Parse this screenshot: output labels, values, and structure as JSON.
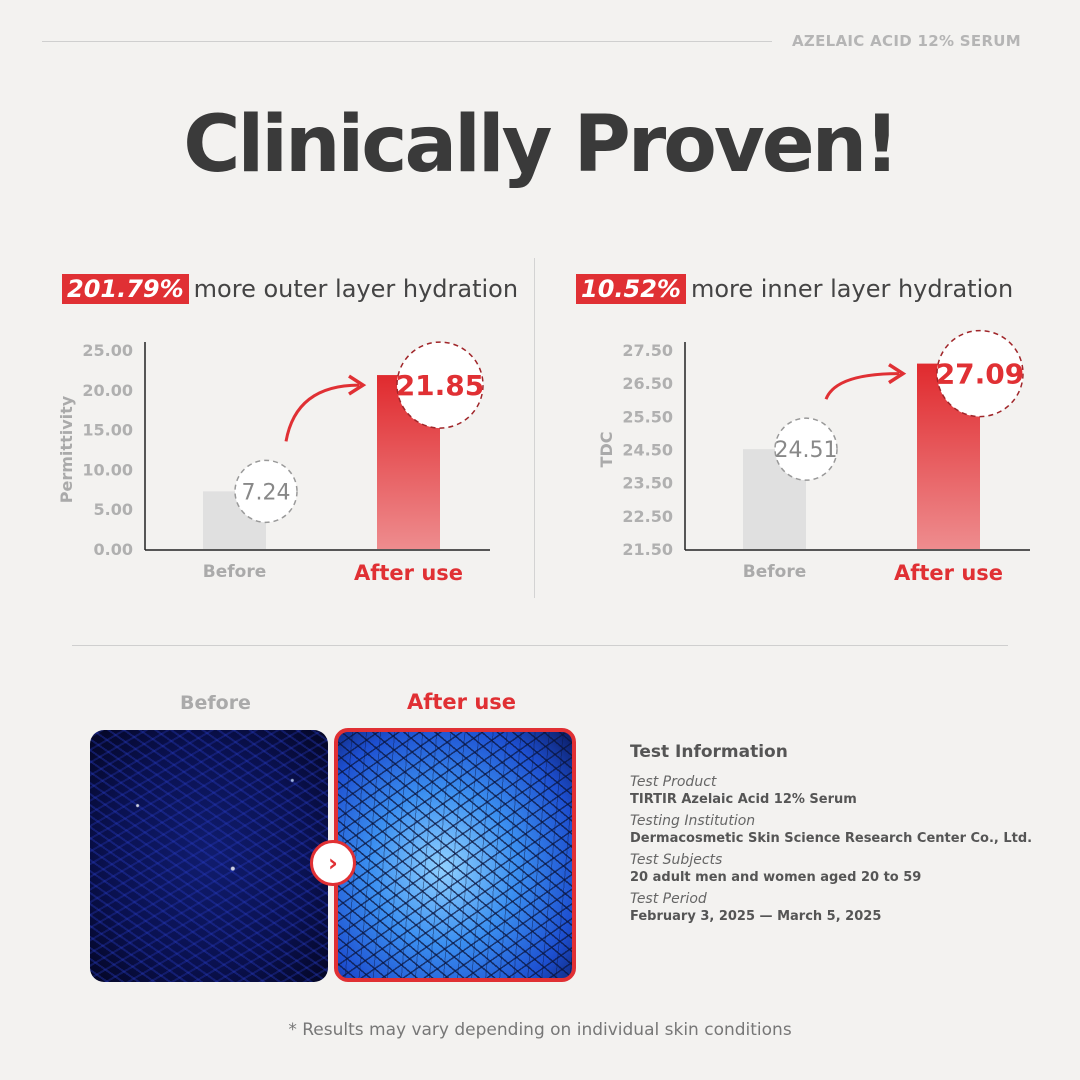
{
  "brand": "AZELAIC ACID 12% SERUM",
  "title": "Clinically Proven!",
  "chart_data": [
    {
      "type": "bar",
      "badge": "201.79%",
      "headline": "more outer layer hydration",
      "ylabel": "Permittivity",
      "categories": [
        "Before",
        "After use"
      ],
      "values": [
        7.24,
        21.85
      ],
      "value_labels": [
        "7.24",
        "21.85"
      ],
      "ylim": [
        0,
        25
      ],
      "yticks": [
        "25.00",
        "20.00",
        "15.00",
        "10.00",
        "5.00",
        "0.00"
      ],
      "colors": [
        "#e0e0e0",
        "#e03034"
      ]
    },
    {
      "type": "bar",
      "badge": "10.52%",
      "headline": "more inner layer hydration",
      "ylabel": "TDC",
      "categories": [
        "Before",
        "After use"
      ],
      "values": [
        24.51,
        27.09
      ],
      "value_labels": [
        "24.51",
        "27.09"
      ],
      "ylim": [
        21.5,
        27.5
      ],
      "yticks": [
        "27.50",
        "26.50",
        "25.50",
        "24.50",
        "23.50",
        "22.50",
        "21.50"
      ],
      "colors": [
        "#e0e0e0",
        "#e03034"
      ]
    }
  ],
  "images": {
    "before_label": "Before",
    "after_label": "After use"
  },
  "info": {
    "title": "Test Information",
    "items": [
      {
        "key": "Test Product",
        "value": "TIRTIR Azelaic Acid 12% Serum"
      },
      {
        "key": "Testing Institution",
        "value": "Dermacosmetic Skin Science Research Center Co., Ltd."
      },
      {
        "key": "Test Subjects",
        "value": "20 adult men and women aged 20 to 59"
      },
      {
        "key": "Test Period",
        "value": "February 3, 2025 — March 5, 2025"
      }
    ]
  },
  "note": "* Results may vary depending on individual skin conditions",
  "accent": "#e03034"
}
